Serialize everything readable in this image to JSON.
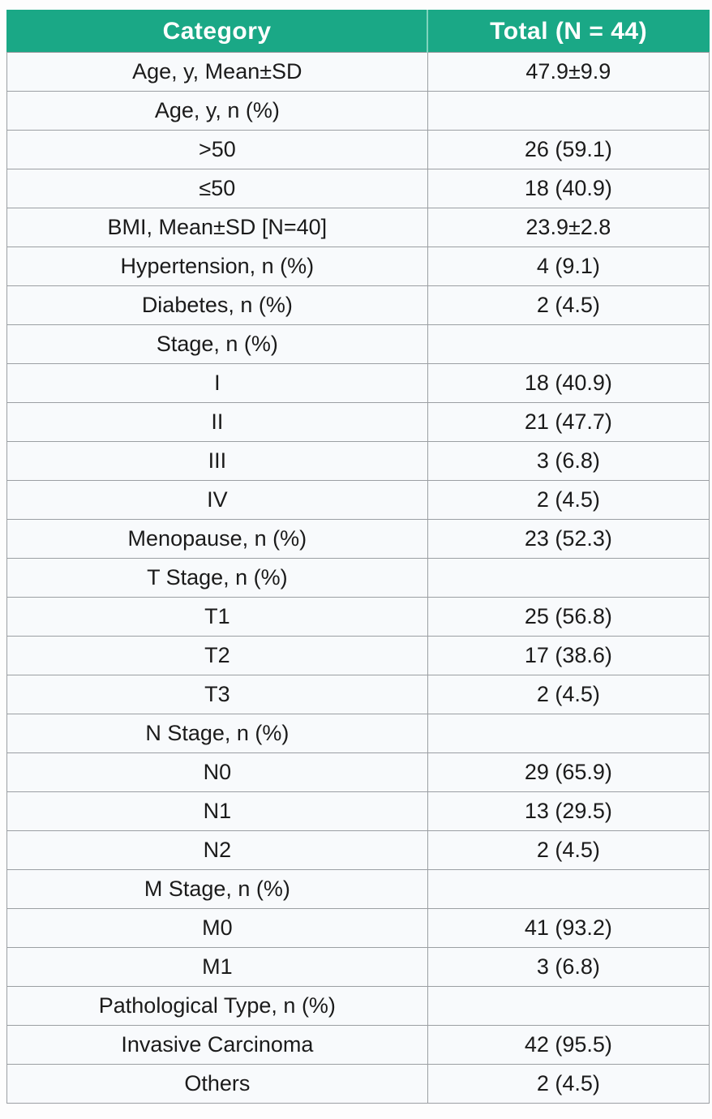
{
  "colors": {
    "header_bg": "#1aa886",
    "header_text": "#ffffff",
    "header_divider": "#7fd4bd",
    "row_bg": "#f8fafc",
    "border": "#9b9fa3",
    "text": "#1b1b1b"
  },
  "table": {
    "headers": [
      "Category",
      "Total (N = 44)"
    ],
    "rows": [
      {
        "category": "Age, y, Mean±SD",
        "total": "47.9±9.9"
      },
      {
        "category": "Age, y, n (%)",
        "total": ""
      },
      {
        "category": ">50",
        "total": "26 (59.1)"
      },
      {
        "category": "≤50",
        "total": "18 (40.9)"
      },
      {
        "category": "BMI, Mean±SD [N=40]",
        "total": "23.9±2.8"
      },
      {
        "category": "Hypertension, n (%)",
        "total": "4 (9.1)"
      },
      {
        "category": "Diabetes, n (%)",
        "total": "2 (4.5)"
      },
      {
        "category": "Stage, n (%)",
        "total": ""
      },
      {
        "category": "I",
        "total": "18 (40.9)"
      },
      {
        "category": "II",
        "total": "21 (47.7)"
      },
      {
        "category": "III",
        "total": "3 (6.8)"
      },
      {
        "category": "IV",
        "total": "2 (4.5)"
      },
      {
        "category": "Menopause, n (%)",
        "total": "23 (52.3)"
      },
      {
        "category": "T Stage, n (%)",
        "total": ""
      },
      {
        "category": "T1",
        "total": "25 (56.8)"
      },
      {
        "category": "T2",
        "total": "17 (38.6)"
      },
      {
        "category": "T3",
        "total": "2 (4.5)"
      },
      {
        "category": "N Stage, n (%)",
        "total": ""
      },
      {
        "category": "N0",
        "total": "29 (65.9)"
      },
      {
        "category": "N1",
        "total": "13 (29.5)"
      },
      {
        "category": "N2",
        "total": "2 (4.5)"
      },
      {
        "category": "M Stage, n (%)",
        "total": ""
      },
      {
        "category": "M0",
        "total": "41 (93.2)"
      },
      {
        "category": "M1",
        "total": "3 (6.8)"
      },
      {
        "category": "Pathological Type, n (%)",
        "total": ""
      },
      {
        "category": "Invasive Carcinoma",
        "total": "42 (95.5)"
      },
      {
        "category": "Others",
        "total": "2 (4.5)"
      }
    ]
  },
  "chart_data": {
    "type": "table",
    "title": "",
    "columns": [
      "Category",
      "Total (N = 44)"
    ],
    "rows": [
      [
        "Age, y, Mean±SD",
        "47.9±9.9"
      ],
      [
        "Age, y, n (%)",
        ""
      ],
      [
        ">50",
        "26 (59.1)"
      ],
      [
        "≤50",
        "18 (40.9)"
      ],
      [
        "BMI, Mean±SD [N=40]",
        "23.9±2.8"
      ],
      [
        "Hypertension, n (%)",
        "4 (9.1)"
      ],
      [
        "Diabetes, n (%)",
        "2 (4.5)"
      ],
      [
        "Stage, n (%)",
        ""
      ],
      [
        "I",
        "18 (40.9)"
      ],
      [
        "II",
        "21 (47.7)"
      ],
      [
        "III",
        "3 (6.8)"
      ],
      [
        "IV",
        "2 (4.5)"
      ],
      [
        "Menopause, n (%)",
        "23 (52.3)"
      ],
      [
        "T Stage, n (%)",
        ""
      ],
      [
        "T1",
        "25 (56.8)"
      ],
      [
        "T2",
        "17 (38.6)"
      ],
      [
        "T3",
        "2 (4.5)"
      ],
      [
        "N Stage, n (%)",
        ""
      ],
      [
        "N0",
        "29 (65.9)"
      ],
      [
        "N1",
        "13 (29.5)"
      ],
      [
        "N2",
        "2 (4.5)"
      ],
      [
        "M Stage, n (%)",
        ""
      ],
      [
        "M0",
        "41 (93.2)"
      ],
      [
        "M1",
        "3 (6.8)"
      ],
      [
        "Pathological Type, n (%)",
        ""
      ],
      [
        "Invasive Carcinoma",
        "42 (95.5)"
      ],
      [
        "Others",
        "2 (4.5)"
      ]
    ],
    "sample_size": 44,
    "layout_hints": {
      "header_bg": "#1aa886",
      "all_cells_centered": true,
      "grid": true
    }
  }
}
